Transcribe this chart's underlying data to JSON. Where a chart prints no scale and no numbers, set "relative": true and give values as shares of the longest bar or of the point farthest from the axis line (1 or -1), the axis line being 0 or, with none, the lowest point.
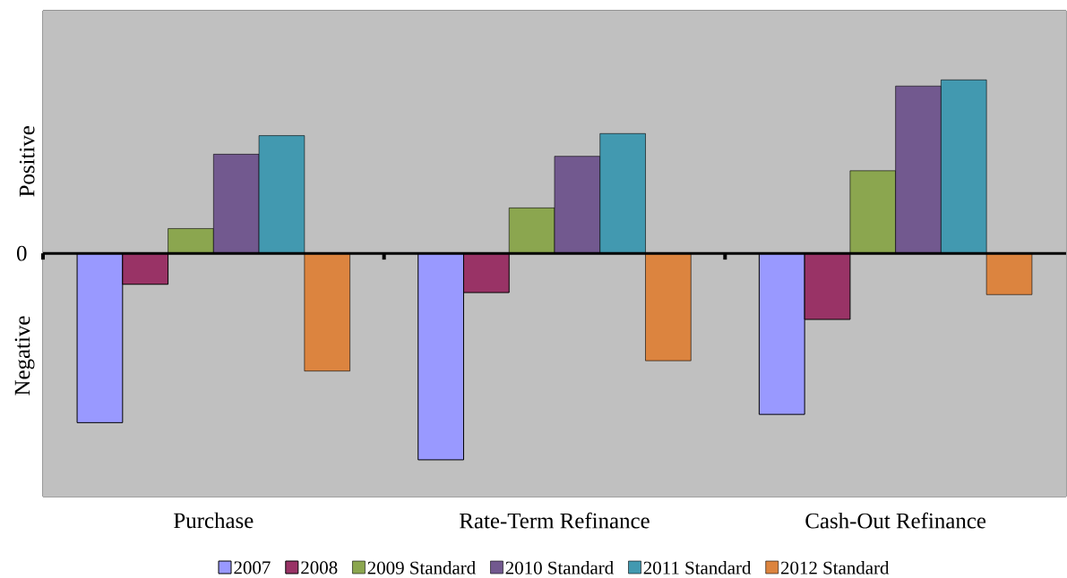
{
  "chart_data": {
    "type": "bar",
    "relative": true,
    "categories": [
      "Purchase",
      "Rate-Term Refinance",
      "Cash-Out Refinance"
    ],
    "series": [
      {
        "name": "2007",
        "color": "#9999ff",
        "values": [
          -0.82,
          -1,
          -0.78
        ]
      },
      {
        "name": "2008",
        "color": "#993366",
        "values": [
          -0.15,
          -0.19,
          -0.32
        ]
      },
      {
        "name": "2009 Standard",
        "color": "#8ba64f",
        "values": [
          0.12,
          0.22,
          0.4
        ]
      },
      {
        "name": "2010 Standard",
        "color": "#72598f",
        "values": [
          0.48,
          0.47,
          0.81
        ]
      },
      {
        "name": "2011 Standard",
        "color": "#4299b0",
        "values": [
          0.57,
          0.58,
          0.84
        ]
      },
      {
        "name": "2012 Standard",
        "color": "#dc843f",
        "values": [
          -0.57,
          -0.52,
          -0.2
        ]
      }
    ],
    "annotations": [
      "Positive",
      "0",
      "Negative"
    ],
    "legend": "bottom"
  }
}
